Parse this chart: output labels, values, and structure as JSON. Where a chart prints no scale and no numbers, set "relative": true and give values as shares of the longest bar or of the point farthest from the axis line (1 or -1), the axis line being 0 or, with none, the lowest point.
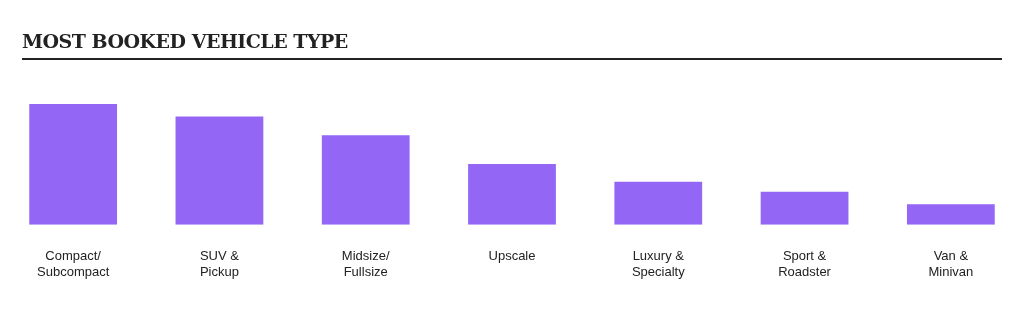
{
  "chart_data": {
    "type": "bar",
    "title": "MOST BOOKED VEHICLE TYPE",
    "categories": [
      "Compact/\nSubcompact",
      "SUV &\nPickup",
      "Midsize/\nFullsize",
      "Upscale",
      "Luxury &\nSpecialty",
      "Sport &\nRoadster",
      "Van &\nMinivan"
    ],
    "values": [
      1,
      0.896,
      0.741,
      0.504,
      0.356,
      0.274,
      0.17
    ],
    "color": "#9366f5",
    "relative": true,
    "grid": false,
    "legend": false
  }
}
